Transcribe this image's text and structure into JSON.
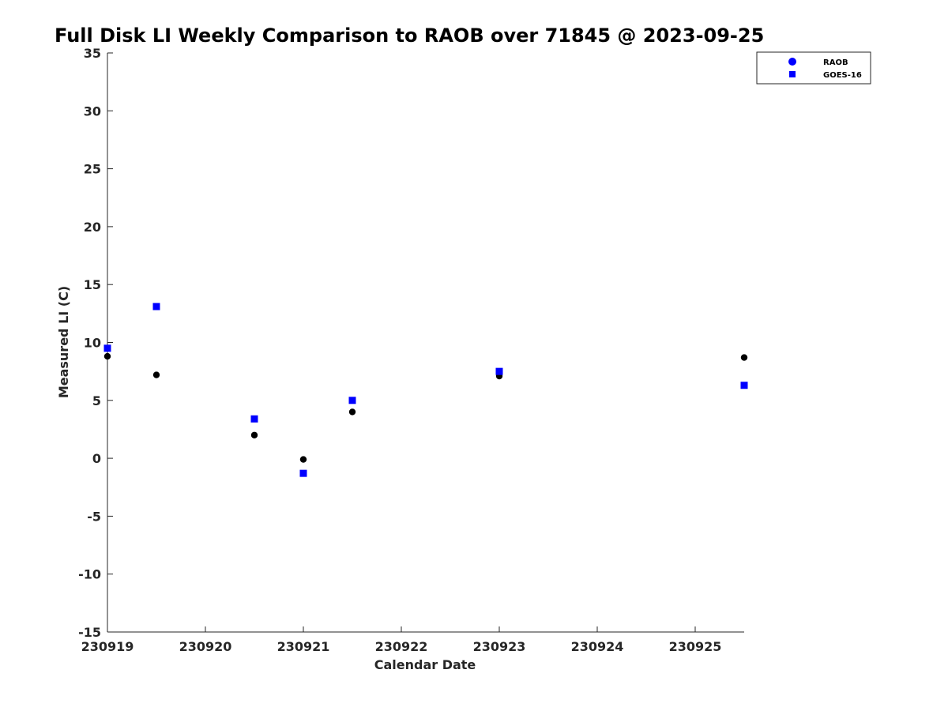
{
  "chart_data": {
    "type": "scatter",
    "title": "Full Disk LI Weekly Comparison to RAOB over 71845 @ 2023-09-25",
    "xlabel": "Calendar Date",
    "ylabel": "Measured LI (C)",
    "xlim": [
      "2023-09-19T00:00",
      "2023-09-25T12:00"
    ],
    "ylim": [
      -15,
      35
    ],
    "x_ticks": [
      {
        "x": "2023-09-19T00:00",
        "label": "230919"
      },
      {
        "x": "2023-09-20T00:00",
        "label": "230920"
      },
      {
        "x": "2023-09-21T00:00",
        "label": "230921"
      },
      {
        "x": "2023-09-22T00:00",
        "label": "230922"
      },
      {
        "x": "2023-09-23T00:00",
        "label": "230923"
      },
      {
        "x": "2023-09-24T00:00",
        "label": "230924"
      },
      {
        "x": "2023-09-25T00:00",
        "label": "230925"
      }
    ],
    "y_ticks": [
      35,
      30,
      25,
      20,
      15,
      10,
      5,
      0,
      -5,
      -10,
      -15
    ],
    "y_tick_labels": [
      "35",
      "30",
      "25",
      "20",
      "15",
      "10",
      "5",
      "0",
      "-5",
      "-10",
      "-15"
    ],
    "grid": false,
    "legend_position": "top-right",
    "legend": [
      {
        "label": "RAOB",
        "marker": "circle",
        "color": "#0000ff"
      },
      {
        "label": "GOES-16",
        "marker": "square",
        "color": "#0000ff"
      }
    ],
    "series": [
      {
        "name": "RAOB",
        "marker": "circle",
        "color": "#000000",
        "points": [
          {
            "x": "2023-09-19T00:00",
            "y": 8.8
          },
          {
            "x": "2023-09-19T12:00",
            "y": 7.2
          },
          {
            "x": "2023-09-20T12:00",
            "y": 2.0
          },
          {
            "x": "2023-09-21T00:00",
            "y": -0.1
          },
          {
            "x": "2023-09-21T12:00",
            "y": 4.0
          },
          {
            "x": "2023-09-23T00:00",
            "y": 7.1
          },
          {
            "x": "2023-09-25T12:00",
            "y": 8.7
          }
        ]
      },
      {
        "name": "GOES-16",
        "marker": "square",
        "color": "#0000ff",
        "points": [
          {
            "x": "2023-09-19T00:00",
            "y": 9.5
          },
          {
            "x": "2023-09-19T12:00",
            "y": 13.1
          },
          {
            "x": "2023-09-20T12:00",
            "y": 3.4
          },
          {
            "x": "2023-09-21T00:00",
            "y": -1.3
          },
          {
            "x": "2023-09-21T12:00",
            "y": 5.0
          },
          {
            "x": "2023-09-23T00:00",
            "y": 7.5
          },
          {
            "x": "2023-09-25T12:00",
            "y": 6.3
          }
        ]
      }
    ]
  }
}
